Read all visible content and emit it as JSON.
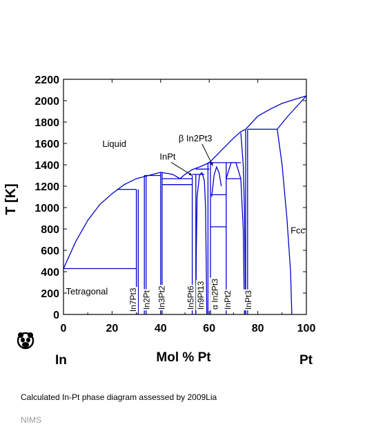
{
  "chart_data": {
    "type": "phase-diagram",
    "title": "",
    "xlabel": "Mol % Pt",
    "ylabel": "T [K]",
    "x_end_labels": {
      "left": "In",
      "right": "Pt"
    },
    "xlim": [
      0,
      100
    ],
    "ylim": [
      0,
      2200
    ],
    "xticks": [
      0,
      20,
      40,
      60,
      80,
      100
    ],
    "yticks": [
      0,
      200,
      400,
      600,
      800,
      1000,
      1200,
      1400,
      1600,
      1800,
      2000,
      2200
    ],
    "grid": false,
    "line_color": "#0000cc",
    "regions": [
      {
        "label": "Liquid",
        "x": 16,
        "y": 1600
      },
      {
        "label": "Tetragonal",
        "x": 1,
        "y": 220
      },
      {
        "label": "Fcc",
        "x": 93.5,
        "y": 790
      }
    ],
    "phase_labels": [
      {
        "label": "In7Pt3",
        "x": 29.8,
        "y": 25
      },
      {
        "label": "In2Pt",
        "x": 35.3,
        "y": 45
      },
      {
        "label": "In3Pt2",
        "x": 41.6,
        "y": 45
      },
      {
        "label": "In5Pt6",
        "x": 53.5,
        "y": 45
      },
      {
        "label": "In9Pt13",
        "x": 57.7,
        "y": 45
      },
      {
        "label": "α In2Pt3",
        "x": 63.5,
        "y": 45
      },
      {
        "label": "InPt2",
        "x": 68.8,
        "y": 45
      },
      {
        "label": "InPt3",
        "x": 77.3,
        "y": 45
      }
    ],
    "annotations": [
      {
        "label": "InPt",
        "x": 39.6,
        "y": 1450,
        "arrow_to": [
          53,
          1300
        ]
      },
      {
        "label": "β In2Pt3",
        "x": 47.4,
        "y": 1620,
        "arrow_to": [
          61.5,
          1390
        ]
      }
    ],
    "boundaries": [
      {
        "name": "liquidus-in-side",
        "points": [
          [
            0,
            429
          ],
          [
            5,
            680
          ],
          [
            10,
            880
          ],
          [
            15,
            1030
          ],
          [
            20,
            1130
          ],
          [
            25,
            1215
          ],
          [
            30,
            1270
          ],
          [
            35,
            1300
          ],
          [
            40,
            1330
          ],
          [
            45,
            1310
          ],
          [
            48,
            1270
          ]
        ]
      },
      {
        "name": "liquidus-mid",
        "points": [
          [
            48,
            1270
          ],
          [
            50,
            1310
          ],
          [
            53,
            1355
          ],
          [
            56,
            1380
          ],
          [
            60,
            1420
          ],
          [
            65,
            1535
          ],
          [
            70,
            1650
          ],
          [
            73,
            1710
          ],
          [
            75,
            1733
          ]
        ]
      },
      {
        "name": "liquidus-pt-side",
        "points": [
          [
            75,
            1733
          ],
          [
            80,
            1855
          ],
          [
            85,
            1920
          ],
          [
            90,
            1975
          ],
          [
            95,
            2010
          ],
          [
            100,
            2045
          ]
        ]
      },
      {
        "name": "solidus-pt-side",
        "points": [
          [
            88,
            1733
          ],
          [
            92,
            1845
          ],
          [
            96,
            1945
          ],
          [
            100,
            2045
          ]
        ]
      },
      {
        "name": "fcc-solvus",
        "points": [
          [
            88,
            1733
          ],
          [
            90,
            1400
          ],
          [
            92,
            900
          ],
          [
            93.5,
            400
          ],
          [
            94,
            0
          ]
        ]
      },
      {
        "name": "in7pt3-liquidus-join",
        "points": [
          [
            22,
            1170
          ],
          [
            30,
            1170
          ]
        ]
      },
      {
        "name": "eutectic-in",
        "points": [
          [
            0,
            429
          ],
          [
            30,
            429
          ]
        ]
      },
      {
        "name": "line-in7pt3-left",
        "points": [
          [
            30,
            0
          ],
          [
            30,
            1170
          ]
        ]
      },
      {
        "name": "line-in7pt3-right",
        "points": [
          [
            30.8,
            0
          ],
          [
            30.8,
            1170
          ]
        ]
      },
      {
        "name": "line-in2pt-left",
        "points": [
          [
            33.3,
            0
          ],
          [
            33.3,
            1300
          ]
        ]
      },
      {
        "name": "line-in2pt-right",
        "points": [
          [
            34,
            0
          ],
          [
            34,
            1300
          ]
        ]
      },
      {
        "name": "in2pt-top",
        "points": [
          [
            33.3,
            1300
          ],
          [
            40,
            1300
          ]
        ]
      },
      {
        "name": "line-in3pt2-left",
        "points": [
          [
            40,
            0
          ],
          [
            40,
            1330
          ]
        ]
      },
      {
        "name": "line-in3pt2-right",
        "points": [
          [
            40.6,
            0
          ],
          [
            40.6,
            1330
          ]
        ]
      },
      {
        "name": "in3pt2-shelf-1",
        "points": [
          [
            40.6,
            1270
          ],
          [
            53,
            1270
          ]
        ]
      },
      {
        "name": "in3pt2-shelf-2",
        "points": [
          [
            40.6,
            1215
          ],
          [
            53,
            1215
          ]
        ]
      },
      {
        "name": "in5pt6-left",
        "points": [
          [
            53,
            0
          ],
          [
            53,
            1300
          ]
        ]
      },
      {
        "name": "in5pt6-right",
        "points": [
          [
            54.5,
            0
          ],
          [
            54.5,
            1310
          ]
        ]
      },
      {
        "name": "in9pt13-arc-left",
        "points": [
          [
            54.5,
            0
          ],
          [
            54.7,
            600
          ],
          [
            55,
            1100
          ],
          [
            56,
            1300
          ],
          [
            57,
            1330
          ]
        ]
      },
      {
        "name": "in9pt13-arc-right",
        "points": [
          [
            57,
            1330
          ],
          [
            58,
            1250
          ],
          [
            58.5,
            1000
          ],
          [
            58.8,
            400
          ],
          [
            59,
            0
          ]
        ]
      },
      {
        "name": "inpt-shelf",
        "points": [
          [
            53,
            1310
          ],
          [
            58,
            1310
          ]
        ]
      },
      {
        "name": "inpt-shelf-2",
        "points": [
          [
            54.5,
            1360
          ],
          [
            60,
            1360
          ]
        ]
      },
      {
        "name": "alpha-in2pt3-left",
        "points": [
          [
            59.5,
            0
          ],
          [
            59.5,
            1420
          ]
        ]
      },
      {
        "name": "alpha-in2pt3-right",
        "points": [
          [
            60.5,
            0
          ],
          [
            60.5,
            1420
          ]
        ]
      },
      {
        "name": "beta-in2pt3-arc",
        "points": [
          [
            61,
            1100
          ],
          [
            62,
            1300
          ],
          [
            63,
            1380
          ],
          [
            64,
            1330
          ],
          [
            65,
            1200
          ]
        ]
      },
      {
        "name": "beta-shelf-1",
        "points": [
          [
            59.5,
            1420
          ],
          [
            73,
            1420
          ]
        ]
      },
      {
        "name": "beta-shelf-2",
        "points": [
          [
            60.5,
            1120
          ],
          [
            67,
            1120
          ]
        ]
      },
      {
        "name": "beta-shelf-3",
        "points": [
          [
            60.5,
            820
          ],
          [
            67,
            820
          ]
        ]
      },
      {
        "name": "inpt2-left",
        "points": [
          [
            67,
            0
          ],
          [
            67,
            1420
          ]
        ]
      },
      {
        "name": "inpt2-arc-left",
        "points": [
          [
            67,
            1270
          ],
          [
            69,
            1420
          ],
          [
            71,
            1420
          ],
          [
            73,
            1270
          ],
          [
            74,
            800
          ],
          [
            74.5,
            0
          ]
        ]
      },
      {
        "name": "inpt2-shelf",
        "points": [
          [
            67,
            1270
          ],
          [
            73,
            1270
          ]
        ]
      },
      {
        "name": "inpt3-left",
        "points": [
          [
            75,
            0
          ],
          [
            75,
            1733
          ]
        ]
      },
      {
        "name": "inpt3-right",
        "points": [
          [
            75.8,
            0
          ],
          [
            75.8,
            1733
          ]
        ]
      },
      {
        "name": "inpt3-top",
        "points": [
          [
            75.8,
            1733
          ],
          [
            88,
            1733
          ]
        ]
      },
      {
        "name": "inpt3-arc",
        "points": [
          [
            73,
            1700
          ],
          [
            74,
            1400
          ],
          [
            74.5,
            1000
          ],
          [
            74.8,
            400
          ],
          [
            75,
            0
          ]
        ]
      }
    ]
  },
  "caption": "Calculated In-Pt phase diagram assessed by 2009Lia",
  "source": "NIMS"
}
